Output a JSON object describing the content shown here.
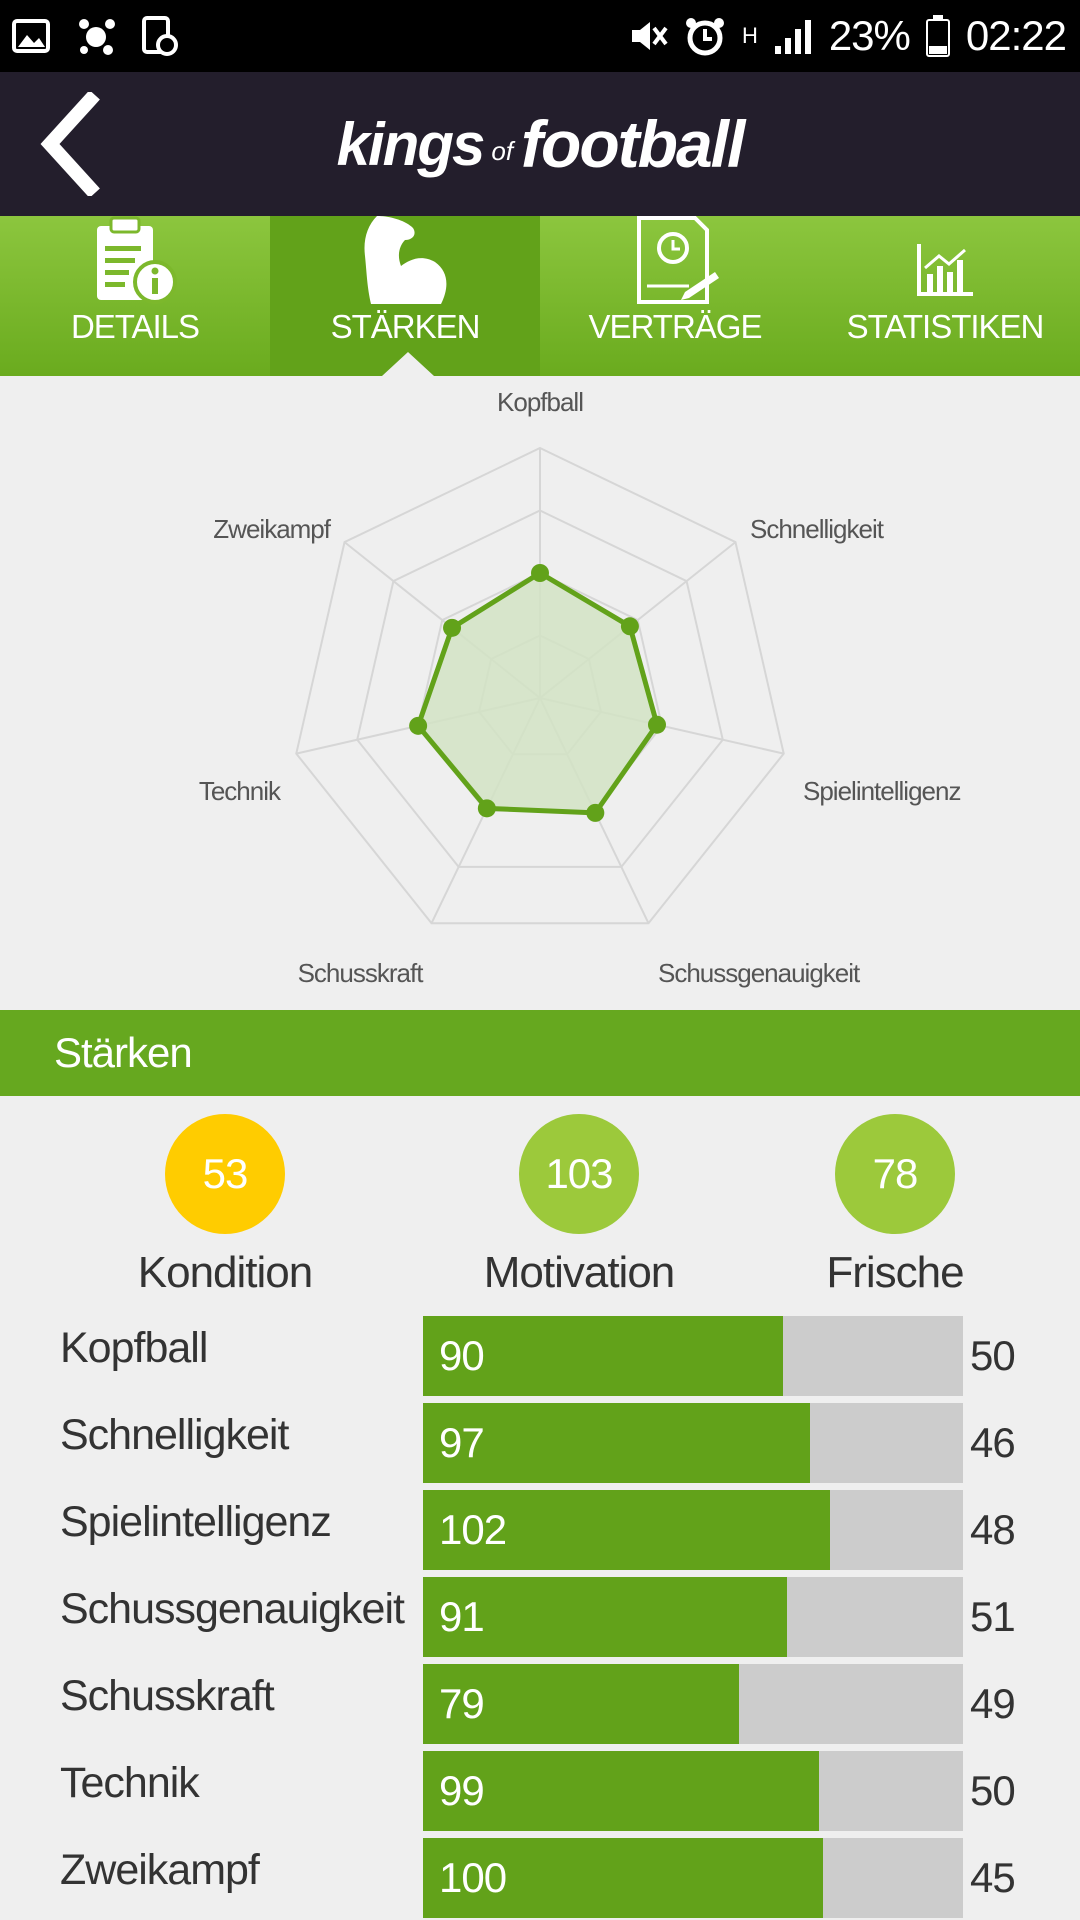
{
  "status_bar": {
    "battery": "23%",
    "time": "02:22",
    "network": "H",
    "icons": [
      "gallery-icon",
      "app-icon",
      "screen-record-icon",
      "mute-icon",
      "alarm-icon",
      "signal-icon",
      "battery-icon"
    ]
  },
  "app_bar": {
    "logo_kings": "kings",
    "logo_of": "of",
    "logo_football": "football"
  },
  "tabs": [
    {
      "label": "DETAILS",
      "icon": "details-icon",
      "active": false
    },
    {
      "label": "STÄRKEN",
      "icon": "strength-icon",
      "active": true
    },
    {
      "label": "VERTRÄGE",
      "icon": "contract-icon",
      "active": false
    },
    {
      "label": "STATISTIKEN",
      "icon": "statistics-icon",
      "active": false
    }
  ],
  "chart_data": {
    "type": "radar",
    "categories": [
      "Kopfball",
      "Schnelligkeit",
      "Spielintelligenz",
      "Schussgenauigkeit",
      "Schusskraft",
      "Technik",
      "Zweikampf"
    ],
    "values": [
      50,
      46,
      48,
      51,
      49,
      50,
      45
    ],
    "range": [
      0,
      100
    ],
    "rings": 4,
    "series_color": "#62a21a",
    "fill_color": "#d2e3c4"
  },
  "section": {
    "title": "Stärken"
  },
  "stats": [
    {
      "value": "53",
      "label": "Kondition",
      "color": "#ffcc00"
    },
    {
      "value": "103",
      "label": "Motivation",
      "color": "#9cc93b"
    },
    {
      "value": "78",
      "label": "Frische",
      "color": "#9cc93b"
    }
  ],
  "strengths": [
    {
      "label": "Kopfball",
      "value": "90",
      "secondary": "50",
      "fill_fraction": 0.667
    },
    {
      "label": "Schnelligkeit",
      "value": "97",
      "secondary": "46",
      "fill_fraction": 0.717
    },
    {
      "label": "Spielintelligenz",
      "value": "102",
      "secondary": "48",
      "fill_fraction": 0.754
    },
    {
      "label": "Schussgenauigkeit",
      "value": "91",
      "secondary": "51",
      "fill_fraction": 0.674
    },
    {
      "label": "Schusskraft",
      "value": "79",
      "secondary": "49",
      "fill_fraction": 0.585
    },
    {
      "label": "Technik",
      "value": "99",
      "secondary": "50",
      "fill_fraction": 0.733
    },
    {
      "label": "Zweikampf",
      "value": "100",
      "secondary": "45",
      "fill_fraction": 0.741
    }
  ]
}
